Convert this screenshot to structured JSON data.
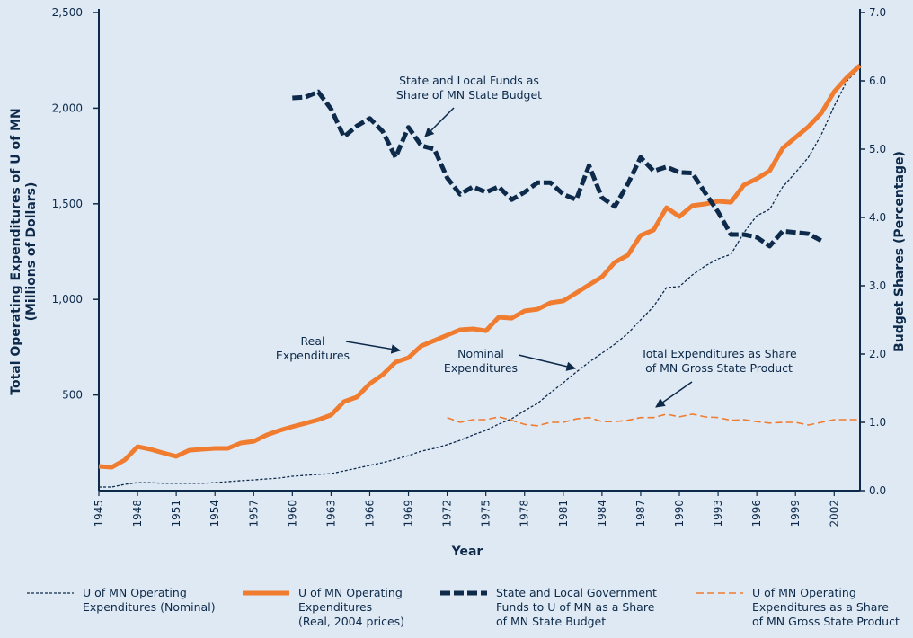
{
  "chart_data": {
    "type": "line",
    "xlabel": "Year",
    "ylabel": "Total Operating Expenditures of U of MN\n(Millions of Dollars)",
    "y2label": "Budget Shares (Percentage)",
    "xlim": [
      1945,
      2004
    ],
    "xticks": [
      1945,
      1948,
      1951,
      1954,
      1957,
      1960,
      1963,
      1966,
      1969,
      1972,
      1975,
      1978,
      1981,
      1984,
      1987,
      1990,
      1993,
      1996,
      1999,
      2002
    ],
    "ylim": [
      0,
      2500
    ],
    "yticks": [
      {
        "value": 500,
        "label": "500"
      },
      {
        "value": 1000,
        "label": "1,000"
      },
      {
        "value": 1500,
        "label": "1,500"
      },
      {
        "value": 2000,
        "label": "2,000"
      },
      {
        "value": 2500,
        "label": "2,500"
      }
    ],
    "y2lim": [
      0,
      7
    ],
    "y2ticks": [
      {
        "value": 0,
        "label": "0.0"
      },
      {
        "value": 1,
        "label": "1.0"
      },
      {
        "value": 2,
        "label": "2.0"
      },
      {
        "value": 3,
        "label": "3.0"
      },
      {
        "value": 4,
        "label": "4.0"
      },
      {
        "value": 5,
        "label": "5.0"
      },
      {
        "value": 6,
        "label": "6.0"
      },
      {
        "value": 7,
        "label": "7.0"
      }
    ],
    "series": [
      {
        "name": "U of MN Operating\nExpenditures (Nominal)",
        "color": "#0d2a4a",
        "line_style": "dotted",
        "x": [
          1945,
          1946,
          1947,
          1948,
          1949,
          1950,
          1951,
          1952,
          1953,
          1954,
          1955,
          1956,
          1957,
          1958,
          1959,
          1960,
          1961,
          1962,
          1963,
          1964,
          1965,
          1966,
          1967,
          1968,
          1969,
          1970,
          1971,
          1972,
          1973,
          1974,
          1975,
          1976,
          1977,
          1978,
          1979,
          1980,
          1981,
          1982,
          1983,
          1984,
          1985,
          1986,
          1987,
          1988,
          1989,
          1990,
          1991,
          1992,
          1993,
          1994,
          1995,
          1996,
          1997,
          1998,
          1999,
          2000,
          2001,
          2002,
          2003,
          2004
        ],
        "values": [
          19,
          19,
          33,
          42,
          42,
          38,
          38,
          38,
          38,
          42,
          47,
          52,
          56,
          61,
          66,
          75,
          80,
          85,
          89,
          103,
          117,
          132,
          146,
          164,
          183,
          207,
          221,
          240,
          263,
          291,
          315,
          348,
          376,
          418,
          456,
          512,
          564,
          620,
          672,
          719,
          766,
          822,
          893,
          963,
          1062,
          1067,
          1128,
          1175,
          1212,
          1236,
          1349,
          1438,
          1471,
          1588,
          1663,
          1743,
          1861,
          2011,
          2143,
          2213
        ]
      },
      {
        "name": "U of MN Operating\nExpenditures\n(Real, 2004 prices)",
        "color": "#f07c30",
        "line_style": "solid",
        "x": [
          1945,
          1946,
          1947,
          1948,
          1949,
          1950,
          1951,
          1952,
          1953,
          1954,
          1955,
          1956,
          1957,
          1958,
          1959,
          1960,
          1961,
          1962,
          1963,
          1964,
          1965,
          1966,
          1967,
          1968,
          1969,
          1970,
          1971,
          1972,
          1973,
          1974,
          1975,
          1976,
          1977,
          1978,
          1979,
          1980,
          1981,
          1982,
          1983,
          1984,
          1985,
          1986,
          1987,
          1988,
          1989,
          1990,
          1991,
          1992,
          1993,
          1994,
          1995,
          1996,
          1997,
          1998,
          1999,
          2000,
          2001,
          2002,
          2003,
          2004
        ],
        "values": [
          127,
          122,
          160,
          230,
          216,
          197,
          179,
          211,
          216,
          221,
          221,
          249,
          258,
          291,
          315,
          334,
          352,
          371,
          395,
          465,
          489,
          559,
          606,
          672,
          695,
          757,
          785,
          813,
          841,
          846,
          836,
          907,
          902,
          940,
          949,
          982,
          992,
          1034,
          1076,
          1118,
          1194,
          1231,
          1335,
          1363,
          1480,
          1433,
          1490,
          1499,
          1513,
          1508,
          1598,
          1631,
          1673,
          1790,
          1847,
          1903,
          1974,
          2086,
          2161,
          2223
        ]
      },
      {
        "name": "State and Local Government\nFunds to U of MN as a Share\nof MN State Budget",
        "color": "#0d2a4a",
        "line_style": "dashed-thick",
        "axis": "y2",
        "x": [
          1960,
          1961,
          1962,
          1963,
          1964,
          1965,
          1966,
          1967,
          1968,
          1969,
          1970,
          1971,
          1972,
          1973,
          1974,
          1975,
          1976,
          1977,
          1978,
          1979,
          1980,
          1981,
          1982,
          1983,
          1984,
          1985,
          1986,
          1987,
          1988,
          1989,
          1990,
          1991,
          1992,
          1993,
          1994,
          1995,
          1996,
          1997,
          1998,
          1999,
          2000,
          2001
        ],
        "values": [
          5.75,
          5.76,
          5.84,
          5.59,
          5.18,
          5.34,
          5.45,
          5.26,
          4.88,
          5.32,
          5.05,
          5.0,
          4.58,
          4.34,
          4.45,
          4.37,
          4.45,
          4.26,
          4.37,
          4.51,
          4.51,
          4.34,
          4.26,
          4.76,
          4.29,
          4.16,
          4.49,
          4.88,
          4.68,
          4.74,
          4.66,
          4.65,
          4.36,
          4.08,
          3.75,
          3.75,
          3.71,
          3.58,
          3.8,
          3.78,
          3.76,
          3.66
        ]
      },
      {
        "name": "U of MN Operating\nExpenditures as a Share\nof MN Gross State Product",
        "color": "#f07c30",
        "line_style": "dashed",
        "axis": "y2",
        "x": [
          1972,
          1973,
          1974,
          1975,
          1976,
          1977,
          1978,
          1979,
          1980,
          1981,
          1982,
          1983,
          1984,
          1985,
          1986,
          1987,
          1988,
          1989,
          1990,
          1991,
          1992,
          1993,
          1994,
          1995,
          1996,
          1997,
          1998,
          1999,
          2000,
          2001,
          2002,
          2003,
          2004
        ],
        "values": [
          1.07,
          1.0,
          1.04,
          1.04,
          1.08,
          1.03,
          0.97,
          0.95,
          1.0,
          1.0,
          1.05,
          1.07,
          1.01,
          1.01,
          1.03,
          1.07,
          1.07,
          1.12,
          1.08,
          1.12,
          1.08,
          1.07,
          1.03,
          1.04,
          1.01,
          0.99,
          1.0,
          1.0,
          0.96,
          1.0,
          1.04,
          1.04,
          1.04
        ]
      }
    ],
    "annotations": [
      {
        "text": "State and Local Funds as\nShare of MN State Budget"
      },
      {
        "text": "Real\nExpenditures"
      },
      {
        "text": "Nominal\nExpenditures"
      },
      {
        "text": "Total Expenditures as Share\nof MN Gross State Product"
      }
    ]
  }
}
